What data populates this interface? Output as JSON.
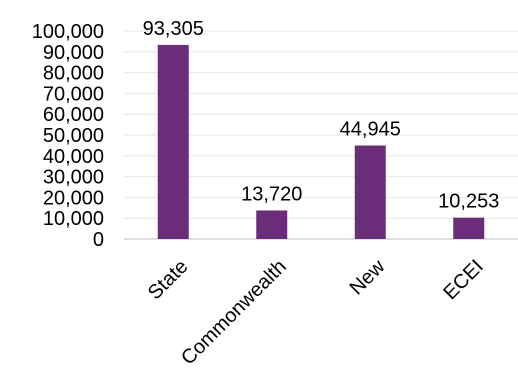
{
  "chart_data": {
    "type": "bar",
    "title": "",
    "xlabel": "",
    "ylabel": "",
    "categories": [
      "State",
      "Commonwealth",
      "New",
      "ECEI"
    ],
    "values": [
      93305,
      13720,
      44945,
      10253
    ],
    "data_labels": [
      "93,305",
      "13,720",
      "44,945",
      "10,253"
    ],
    "ylim": [
      0,
      100000
    ],
    "y_ticks": [
      0,
      10000,
      20000,
      30000,
      40000,
      50000,
      60000,
      70000,
      80000,
      90000,
      100000
    ],
    "y_tick_labels": [
      "0",
      "10,000",
      "20,000",
      "30,000",
      "40,000",
      "50,000",
      "60,000",
      "70,000",
      "80,000",
      "90,000",
      "100,000"
    ],
    "grid": true,
    "legend": "none",
    "colors": {
      "bar": "#6B2C7A",
      "grid": "#E6E6E6",
      "axis": "#BFBFBF"
    }
  }
}
